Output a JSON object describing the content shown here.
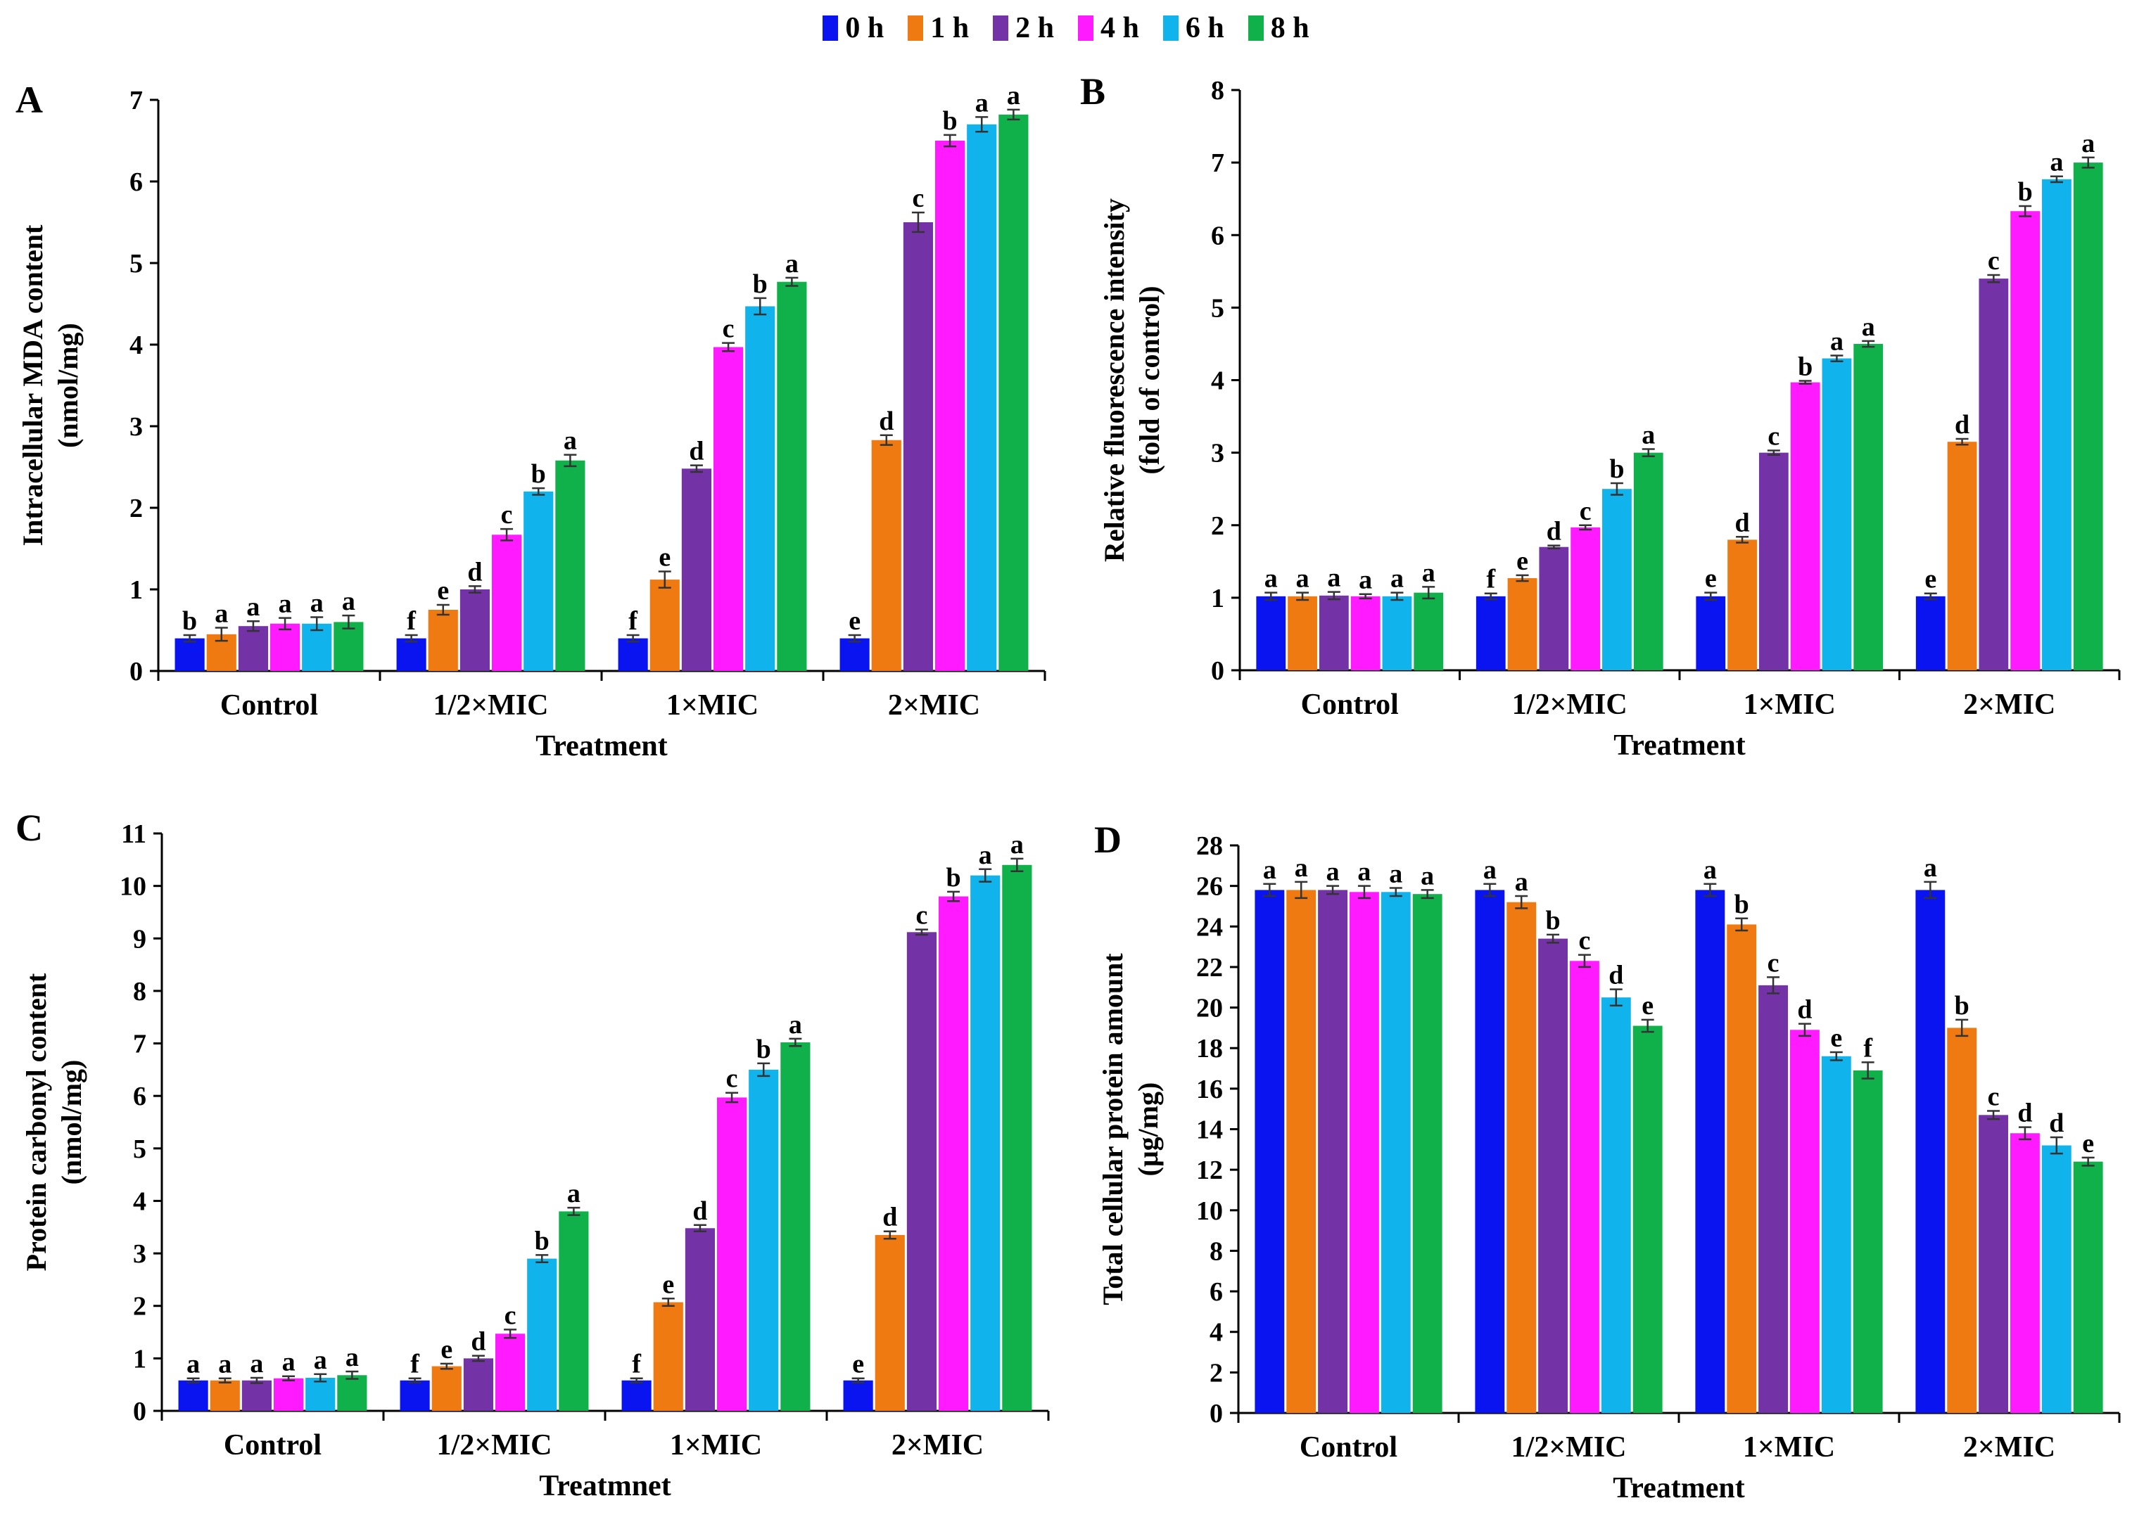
{
  "legend": [
    {
      "label": "0 h",
      "color": "#0a14f0"
    },
    {
      "label": "1 h",
      "color": "#f07a12"
    },
    {
      "label": "2 h",
      "color": "#7333a6"
    },
    {
      "label": "4 h",
      "color": "#ff1aff"
    },
    {
      "label": "6 h",
      "color": "#10b3ec"
    },
    {
      "label": "8 h",
      "color": "#10b04a"
    }
  ],
  "chart_data": [
    {
      "type": "bar",
      "panel_label": "A",
      "ylabel_lines": [
        "Intracellular MDA content",
        "(nmol/mg)"
      ],
      "xlabel": "Treatment",
      "categories": [
        "Control",
        "1/2×MIC",
        "1×MIC",
        "2×MIC"
      ],
      "ylim": [
        0,
        7
      ],
      "yticks": [
        "0",
        "1",
        "2",
        "3",
        "4",
        "5",
        "6",
        "7"
      ],
      "series": [
        {
          "name": "0 h",
          "values": [
            0.4,
            0.4,
            0.4,
            0.4
          ],
          "errors": [
            0.04,
            0.04,
            0.04,
            0.04
          ],
          "letters": [
            "b",
            "f",
            "f",
            "e"
          ]
        },
        {
          "name": "1 h",
          "values": [
            0.45,
            0.75,
            1.12,
            2.83
          ],
          "errors": [
            0.08,
            0.06,
            0.1,
            0.06
          ],
          "letters": [
            "a",
            "e",
            "e",
            "d"
          ]
        },
        {
          "name": "2 h",
          "values": [
            0.55,
            1.0,
            2.48,
            5.5
          ],
          "errors": [
            0.06,
            0.04,
            0.04,
            0.12
          ],
          "letters": [
            "a",
            "d",
            "d",
            "c"
          ]
        },
        {
          "name": "4 h",
          "values": [
            0.58,
            1.67,
            3.97,
            6.5
          ],
          "errors": [
            0.07,
            0.07,
            0.05,
            0.07
          ],
          "letters": [
            "a",
            "c",
            "c",
            "b"
          ]
        },
        {
          "name": "6 h",
          "values": [
            0.58,
            2.2,
            4.47,
            6.7
          ],
          "errors": [
            0.08,
            0.04,
            0.1,
            0.09
          ],
          "letters": [
            "a",
            "b",
            "b",
            "a"
          ]
        },
        {
          "name": "8 h",
          "values": [
            0.6,
            2.58,
            4.77,
            6.82
          ],
          "errors": [
            0.08,
            0.07,
            0.05,
            0.06
          ],
          "letters": [
            "a",
            "a",
            "a",
            "a"
          ]
        }
      ]
    },
    {
      "type": "bar",
      "panel_label": "B",
      "ylabel_lines": [
        "Relative fluorescence intensity",
        "(fold of control)"
      ],
      "xlabel": "Treatment",
      "categories": [
        "Control",
        "1/2×MIC",
        "1×MIC",
        "2×MIC"
      ],
      "ylim": [
        0,
        8
      ],
      "yticks": [
        "0",
        "1",
        "2",
        "3",
        "4",
        "5",
        "6",
        "7",
        "8"
      ],
      "series": [
        {
          "name": "0 h",
          "values": [
            1.02,
            1.02,
            1.02,
            1.02
          ],
          "errors": [
            0.05,
            0.04,
            0.05,
            0.04
          ],
          "letters": [
            "a",
            "f",
            "e",
            "e"
          ]
        },
        {
          "name": "1 h",
          "values": [
            1.02,
            1.27,
            1.8,
            3.15
          ],
          "errors": [
            0.05,
            0.04,
            0.04,
            0.04
          ],
          "letters": [
            "a",
            "e",
            "d",
            "d"
          ]
        },
        {
          "name": "2 h",
          "values": [
            1.03,
            1.7,
            3.0,
            5.4
          ],
          "errors": [
            0.05,
            0.02,
            0.03,
            0.05
          ],
          "letters": [
            "a",
            "d",
            "c",
            "c"
          ]
        },
        {
          "name": "4 h",
          "values": [
            1.02,
            1.97,
            3.97,
            6.33
          ],
          "errors": [
            0.03,
            0.03,
            0.02,
            0.07
          ],
          "letters": [
            "a",
            "c",
            "b",
            "b"
          ]
        },
        {
          "name": "6 h",
          "values": [
            1.02,
            2.5,
            4.3,
            6.77
          ],
          "errors": [
            0.05,
            0.08,
            0.04,
            0.04
          ],
          "letters": [
            "a",
            "b",
            "a",
            "a"
          ]
        },
        {
          "name": "8 h",
          "values": [
            1.07,
            3.0,
            4.5,
            7.0
          ],
          "errors": [
            0.08,
            0.05,
            0.04,
            0.07
          ],
          "letters": [
            "a",
            "a",
            "a",
            "a"
          ]
        }
      ]
    },
    {
      "type": "bar",
      "panel_label": "C",
      "ylabel_lines": [
        "Protein carbonyl content",
        "(nmol/mg)"
      ],
      "xlabel": "Treatmnet",
      "categories": [
        "Control",
        "1/2×MIC",
        "1×MIC",
        "2×MIC"
      ],
      "ylim": [
        0,
        11
      ],
      "yticks": [
        "0",
        "1",
        "2",
        "3",
        "4",
        "5",
        "6",
        "7",
        "8",
        "9",
        "10",
        "11"
      ],
      "series": [
        {
          "name": "0 h",
          "values": [
            0.58,
            0.58,
            0.58,
            0.58
          ],
          "errors": [
            0.04,
            0.04,
            0.04,
            0.04
          ],
          "letters": [
            "a",
            "f",
            "f",
            "e"
          ]
        },
        {
          "name": "1 h",
          "values": [
            0.58,
            0.85,
            2.07,
            3.35
          ],
          "errors": [
            0.04,
            0.05,
            0.07,
            0.07
          ],
          "letters": [
            "a",
            "e",
            "e",
            "d"
          ]
        },
        {
          "name": "2 h",
          "values": [
            0.58,
            1.0,
            3.48,
            9.12
          ],
          "errors": [
            0.05,
            0.05,
            0.06,
            0.05
          ],
          "letters": [
            "a",
            "d",
            "d",
            "c"
          ]
        },
        {
          "name": "4 h",
          "values": [
            0.62,
            1.47,
            5.97,
            9.8
          ],
          "errors": [
            0.04,
            0.08,
            0.09,
            0.09
          ],
          "letters": [
            "a",
            "c",
            "c",
            "b"
          ]
        },
        {
          "name": "6 h",
          "values": [
            0.63,
            2.9,
            6.5,
            10.2
          ],
          "errors": [
            0.07,
            0.07,
            0.12,
            0.12
          ],
          "letters": [
            "a",
            "b",
            "b",
            "a"
          ]
        },
        {
          "name": "8 h",
          "values": [
            0.68,
            3.8,
            7.02,
            10.4
          ],
          "errors": [
            0.07,
            0.07,
            0.07,
            0.12
          ],
          "letters": [
            "a",
            "a",
            "a",
            "a"
          ]
        }
      ]
    },
    {
      "type": "bar",
      "panel_label": "D",
      "ylabel_lines": [
        "Total cellular protein amount",
        "(μg/mg)"
      ],
      "xlabel": "Treatment",
      "categories": [
        "Control",
        "1/2×MIC",
        "1×MIC",
        "2×MIC"
      ],
      "ylim": [
        0,
        28
      ],
      "yticks": [
        "0",
        "2",
        "4",
        "6",
        "8",
        "10",
        "12",
        "14",
        "16",
        "18",
        "20",
        "22",
        "24",
        "26",
        "28"
      ],
      "series": [
        {
          "name": "0 h",
          "values": [
            25.8,
            25.8,
            25.8,
            25.8
          ],
          "errors": [
            0.3,
            0.3,
            0.3,
            0.4
          ],
          "letters": [
            "a",
            "a",
            "a",
            "a"
          ]
        },
        {
          "name": "1 h",
          "values": [
            25.8,
            25.2,
            24.1,
            19.0
          ],
          "errors": [
            0.4,
            0.3,
            0.3,
            0.4
          ],
          "letters": [
            "a",
            "a",
            "b",
            "b"
          ]
        },
        {
          "name": "2 h",
          "values": [
            25.8,
            23.4,
            21.1,
            14.7
          ],
          "errors": [
            0.2,
            0.2,
            0.4,
            0.2
          ],
          "letters": [
            "a",
            "b",
            "c",
            "c"
          ]
        },
        {
          "name": "4 h",
          "values": [
            25.7,
            22.3,
            18.9,
            13.8
          ],
          "errors": [
            0.3,
            0.3,
            0.3,
            0.3
          ],
          "letters": [
            "a",
            "c",
            "d",
            "d"
          ]
        },
        {
          "name": "6 h",
          "values": [
            25.7,
            20.5,
            17.6,
            13.2
          ],
          "errors": [
            0.2,
            0.4,
            0.2,
            0.4
          ],
          "letters": [
            "a",
            "d",
            "e",
            "d"
          ]
        },
        {
          "name": "8 h",
          "values": [
            25.6,
            19.1,
            16.9,
            12.4
          ],
          "errors": [
            0.2,
            0.3,
            0.4,
            0.2
          ],
          "letters": [
            "a",
            "e",
            "f",
            "e"
          ]
        }
      ]
    }
  ]
}
